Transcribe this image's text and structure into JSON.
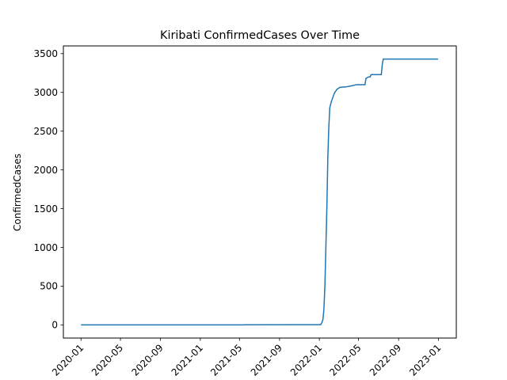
{
  "chart_data": {
    "type": "line",
    "title": "Kiribati  ConfirmedCases Over Time",
    "xlabel": "",
    "ylabel": "ConfirmedCases",
    "grid": false,
    "legend": "none",
    "xlim": [
      "2019-11-08",
      "2023-02-25"
    ],
    "ylim": [
      -170,
      3600
    ],
    "x_ticks": [
      "2020-01",
      "2020-05",
      "2020-09",
      "2021-01",
      "2021-05",
      "2021-09",
      "2022-01",
      "2022-05",
      "2022-09",
      "2023-01"
    ],
    "y_ticks": [
      0,
      500,
      1000,
      1500,
      2000,
      2500,
      3000,
      3500
    ],
    "series": [
      {
        "color": "#1f77b4",
        "points": [
          [
            "2020-01-01",
            0
          ],
          [
            "2021-05-15",
            0
          ],
          [
            "2021-05-16",
            1
          ],
          [
            "2022-01-05",
            2
          ],
          [
            "2022-01-09",
            30
          ],
          [
            "2022-01-12",
            70
          ],
          [
            "2022-01-15",
            200
          ],
          [
            "2022-01-18",
            500
          ],
          [
            "2022-01-21",
            1000
          ],
          [
            "2022-01-24",
            1500
          ],
          [
            "2022-01-27",
            2150
          ],
          [
            "2022-01-30",
            2550
          ],
          [
            "2022-02-02",
            2800
          ],
          [
            "2022-02-06",
            2870
          ],
          [
            "2022-02-10",
            2920
          ],
          [
            "2022-02-16",
            2990
          ],
          [
            "2022-02-24",
            3040
          ],
          [
            "2022-03-05",
            3065
          ],
          [
            "2022-03-25",
            3072
          ],
          [
            "2022-04-10",
            3085
          ],
          [
            "2022-04-25",
            3100
          ],
          [
            "2022-05-21",
            3100
          ],
          [
            "2022-05-24",
            3180
          ],
          [
            "2022-06-01",
            3200
          ],
          [
            "2022-06-06",
            3200
          ],
          [
            "2022-06-08",
            3225
          ],
          [
            "2022-06-10",
            3230
          ],
          [
            "2022-07-10",
            3230
          ],
          [
            "2022-07-13",
            3360
          ],
          [
            "2022-07-16",
            3430
          ],
          [
            "2022-12-31",
            3430
          ]
        ]
      }
    ]
  }
}
